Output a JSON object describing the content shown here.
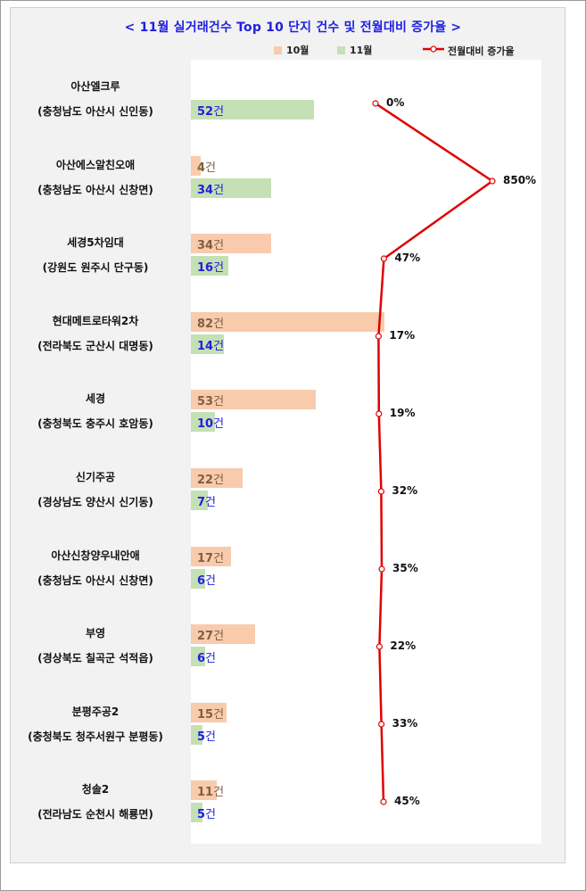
{
  "title": "< 11월 실거래건수 Top 10 단지 건수 및 전월대비 증가율 >",
  "legend": {
    "oct_label": "10월",
    "nov_label": "11월",
    "line_label": "전월대비 증가율"
  },
  "colors": {
    "oct": "#f8cbad",
    "nov": "#c5e0b4",
    "line": "#e00000",
    "title": "#1f1fe0"
  },
  "unit": "건",
  "chart_data": {
    "type": "bar",
    "orientation": "horizontal",
    "title": "< 11월 실거래건수 Top 10 단지 건수 및 전월대비 증가율 >",
    "categories": [
      {
        "name": "아산엘크루",
        "location": "(충청남도 아산시 신인동)"
      },
      {
        "name": "아산에스알친오애",
        "location": "(충청남도 아산시 신창면)"
      },
      {
        "name": "세경5차임대",
        "location": "(강원도 원주시 단구동)"
      },
      {
        "name": "현대메트로타워2차",
        "location": "(전라북도 군산시 대명동)"
      },
      {
        "name": "세경",
        "location": "(충청북도 충주시 호암동)"
      },
      {
        "name": "신기주공",
        "location": "(경상남도 양산시 신기동)"
      },
      {
        "name": "아산신창양우내안애",
        "location": "(충청남도 아산시 신창면)"
      },
      {
        "name": "부영",
        "location": "(경상북도 칠곡군 석적읍)"
      },
      {
        "name": "분평주공2",
        "location": "(충청북도 청주서원구 분평동)"
      },
      {
        "name": "청솔2",
        "location": "(전라남도 순천시 해룡면)"
      }
    ],
    "series": [
      {
        "name": "10월",
        "type": "bar",
        "values": [
          null,
          4,
          34,
          82,
          53,
          22,
          17,
          27,
          15,
          11
        ]
      },
      {
        "name": "11월",
        "type": "bar",
        "values": [
          52,
          34,
          16,
          14,
          10,
          7,
          6,
          6,
          5,
          5
        ]
      },
      {
        "name": "전월대비 증가율",
        "type": "line",
        "values": [
          0,
          850,
          47,
          17,
          19,
          32,
          35,
          22,
          33,
          45
        ],
        "value_labels": [
          "0%",
          "850%",
          "47%",
          "17%",
          "19%",
          "32%",
          "35%",
          "22%",
          "33%",
          "45%"
        ]
      }
    ],
    "legend_position": "top-right"
  }
}
